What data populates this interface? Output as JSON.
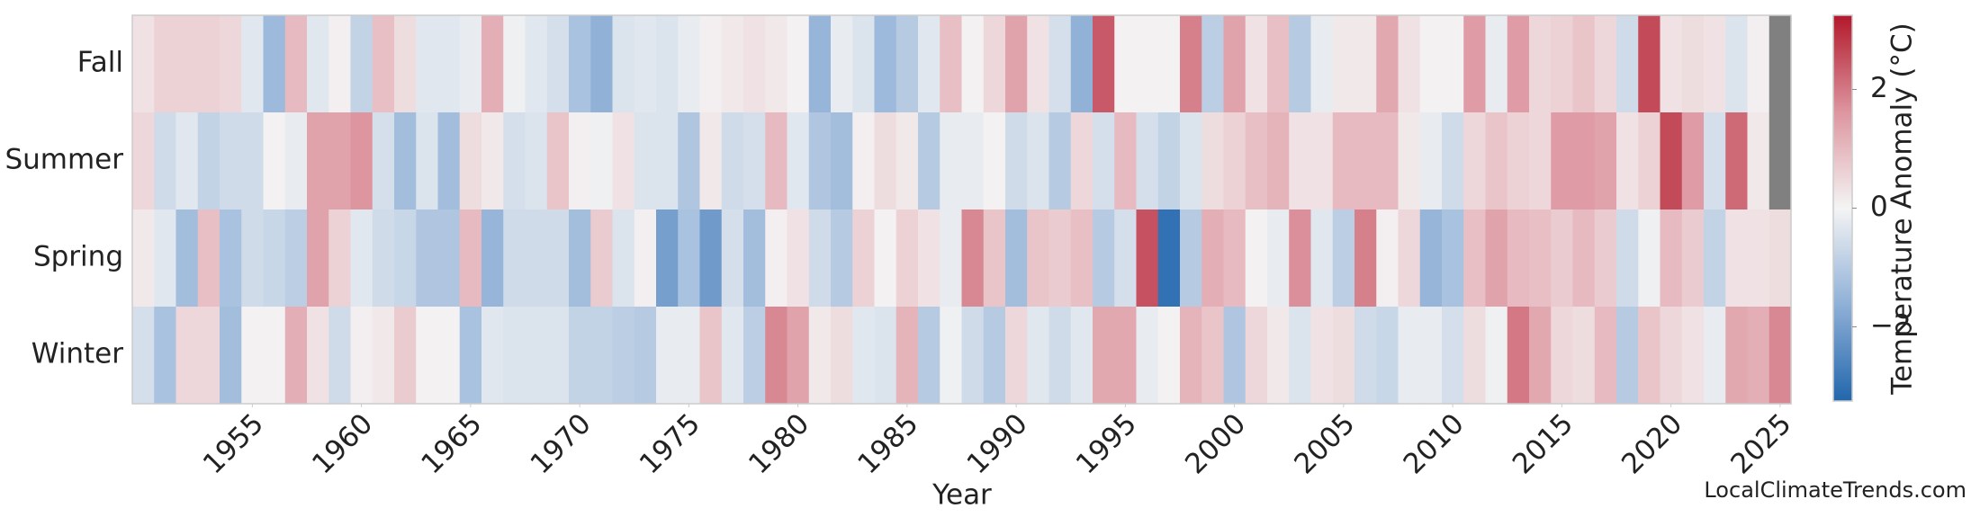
{
  "chart_data": {
    "type": "heatmap",
    "x_label": "Year",
    "colorbar_label": "Temperature Anomaly (°C)",
    "watermark": "LocalClimateTrends.com",
    "x": [
      1950,
      1951,
      1952,
      1953,
      1954,
      1955,
      1956,
      1957,
      1958,
      1959,
      1960,
      1961,
      1962,
      1963,
      1964,
      1965,
      1966,
      1967,
      1968,
      1969,
      1970,
      1971,
      1972,
      1973,
      1974,
      1975,
      1976,
      1977,
      1978,
      1979,
      1980,
      1981,
      1982,
      1983,
      1984,
      1985,
      1986,
      1987,
      1988,
      1989,
      1990,
      1991,
      1992,
      1993,
      1994,
      1995,
      1996,
      1997,
      1998,
      1999,
      2000,
      2001,
      2002,
      2003,
      2004,
      2005,
      2006,
      2007,
      2008,
      2009,
      2010,
      2011,
      2012,
      2013,
      2014,
      2015,
      2016,
      2017,
      2018,
      2019,
      2020,
      2021,
      2022,
      2023,
      2024,
      2025
    ],
    "xlim": [
      1949.5,
      2025.5
    ],
    "xticks": [
      1955,
      1960,
      1965,
      1970,
      1975,
      1980,
      1985,
      1990,
      1995,
      2000,
      2005,
      2010,
      2015,
      2020,
      2025
    ],
    "clim": [
      -3.25,
      3.25
    ],
    "cticks": [
      {
        "value": -2,
        "label": "−2"
      },
      0,
      2
    ],
    "missing_color": "#808080",
    "series": [
      {
        "name": "Fall",
        "values": [
          0.3,
          0.6,
          0.6,
          0.6,
          0.5,
          -0.3,
          -1.4,
          1.0,
          -0.3,
          0.1,
          -0.8,
          0.9,
          0.4,
          -0.3,
          -0.3,
          -0.2,
          1.2,
          -0.1,
          -0.3,
          -0.5,
          -1.2,
          -1.6,
          -0.4,
          -0.3,
          -0.4,
          -0.2,
          0.1,
          0.2,
          0.3,
          0.2,
          0.05,
          -1.5,
          -0.2,
          -0.4,
          -1.4,
          -1.0,
          -0.3,
          0.9,
          0.05,
          0.5,
          1.4,
          0.3,
          -0.5,
          -1.6,
          2.4,
          0.05,
          0.05,
          0.05,
          1.9,
          -0.9,
          1.4,
          0.3,
          0.9,
          -1.0,
          -0.2,
          0.2,
          0.2,
          1.3,
          0.3,
          0.05,
          0.05,
          1.5,
          -0.2,
          1.5,
          0.5,
          0.6,
          0.8,
          0.5,
          -0.6,
          2.6,
          0.3,
          0.4,
          0.3,
          -0.4,
          0.1,
          null
        ]
      },
      {
        "name": "Summer",
        "values": [
          0.5,
          -0.6,
          -0.3,
          -0.8,
          -0.6,
          -0.6,
          0.05,
          -0.2,
          1.4,
          1.4,
          1.6,
          -0.5,
          -1.3,
          -0.4,
          -1.3,
          0.4,
          0.2,
          -0.5,
          -0.4,
          0.8,
          0.1,
          -0.1,
          0.3,
          -0.4,
          -0.4,
          -1.1,
          0.2,
          -0.6,
          -0.5,
          1.0,
          -0.3,
          -1.1,
          -1.3,
          0.1,
          0.4,
          0.2,
          -1.0,
          -0.2,
          -0.2,
          0.05,
          -0.6,
          -0.4,
          -1.0,
          0.5,
          -0.5,
          1.0,
          -0.5,
          -0.8,
          -0.4,
          0.4,
          0.6,
          0.9,
          1.1,
          0.3,
          0.3,
          1.0,
          1.0,
          1.0,
          0.2,
          -0.2,
          -0.6,
          0.5,
          0.8,
          0.6,
          0.5,
          1.5,
          1.5,
          1.4,
          0.3,
          0.6,
          2.6,
          1.5,
          -0.5,
          2.2,
          0.2,
          null
        ]
      },
      {
        "name": "Spring",
        "values": [
          0.2,
          -0.3,
          -1.3,
          0.9,
          -1.2,
          -0.6,
          -0.7,
          -0.9,
          1.4,
          0.6,
          -0.3,
          -0.6,
          -0.7,
          -1.1,
          -1.1,
          1.0,
          -1.5,
          -0.6,
          -0.6,
          -0.6,
          -1.3,
          0.7,
          -0.4,
          0.1,
          -2.0,
          -1.2,
          -2.1,
          -0.5,
          -1.3,
          0.1,
          0.3,
          -0.6,
          -1.0,
          0.6,
          0.05,
          0.6,
          0.3,
          -0.2,
          1.8,
          0.8,
          -1.3,
          0.8,
          0.7,
          0.9,
          -1.0,
          -0.5,
          2.5,
          -3.0,
          -1.0,
          1.2,
          1.0,
          0.05,
          -0.2,
          1.7,
          -0.3,
          -0.9,
          1.9,
          0.1,
          0.5,
          -1.5,
          -1.2,
          0.9,
          1.4,
          1.0,
          0.9,
          0.7,
          1.0,
          0.7,
          -0.6,
          -0.1,
          1.0,
          0.7,
          -0.8,
          0.3,
          0.3,
          0.4
        ]
      },
      {
        "name": "Winter",
        "values": [
          -0.5,
          -1.2,
          0.5,
          0.5,
          -1.3,
          0.05,
          0.05,
          1.2,
          0.3,
          -0.6,
          0.1,
          0.2,
          0.7,
          0.05,
          0.05,
          -1.2,
          -0.3,
          -0.4,
          -0.4,
          -0.4,
          -0.8,
          -0.8,
          -0.9,
          -1.0,
          -0.2,
          -0.2,
          0.8,
          -0.3,
          -0.9,
          1.8,
          1.4,
          0.2,
          0.4,
          -0.3,
          -0.4,
          1.1,
          -1.0,
          -0.1,
          -0.6,
          -1.0,
          0.5,
          -0.3,
          -0.6,
          -0.3,
          1.3,
          1.3,
          -0.2,
          0.05,
          1.1,
          0.8,
          -1.1,
          0.5,
          0.2,
          -0.4,
          0.3,
          0.4,
          -0.6,
          -0.7,
          -0.2,
          -0.2,
          -0.5,
          0.4,
          -0.1,
          2.0,
          1.3,
          0.5,
          0.4,
          1.0,
          -1.0,
          0.8,
          0.5,
          0.3,
          -0.2,
          1.3,
          1.2,
          1.8
        ]
      }
    ]
  }
}
